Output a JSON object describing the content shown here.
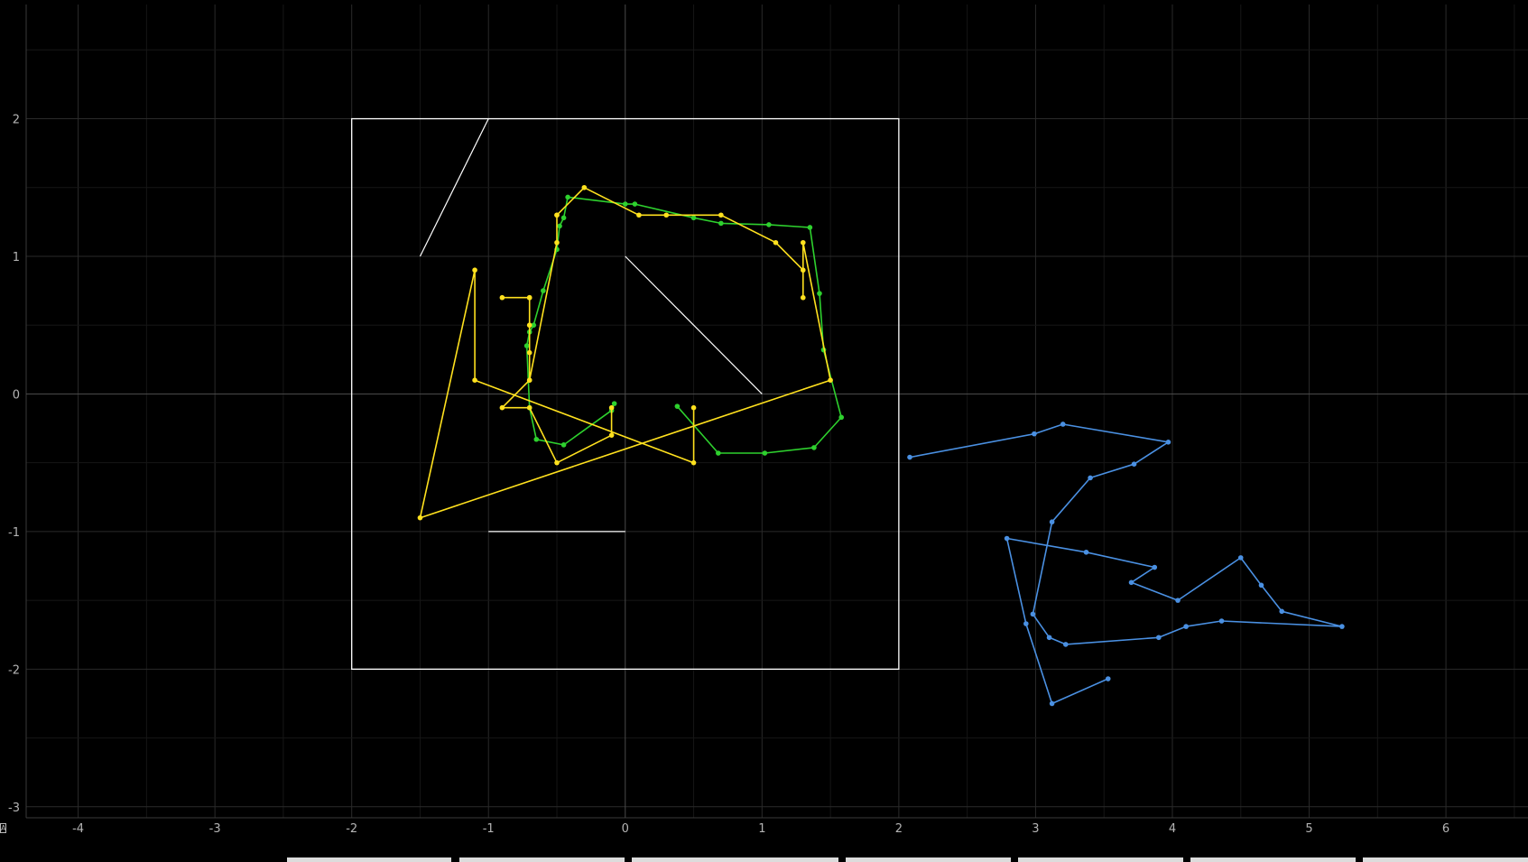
{
  "chart_data": {
    "type": "line",
    "xlim": [
      -4.38,
      6.6
    ],
    "ylim": [
      -3.08,
      2.83
    ],
    "grid": true,
    "x_ticks": [
      -4,
      -3,
      -2,
      -1,
      0,
      1,
      2,
      3,
      4,
      5,
      6
    ],
    "y_ticks": [
      -3,
      -2,
      -1,
      0,
      1,
      2
    ],
    "x_tick_labels": [
      "-4",
      "-3",
      "-2",
      "-1",
      "0",
      "1",
      "2",
      "3",
      "4",
      "5",
      "6"
    ],
    "y_tick_labels": [
      "-3",
      "-2",
      "-1",
      "0",
      "1",
      "2"
    ],
    "series": [
      {
        "id": "green",
        "color": "#2ed12e",
        "x": [
          -0.08,
          -0.1,
          -0.45,
          -0.65,
          -0.7,
          -0.72,
          -0.7,
          -0.67,
          -0.6,
          -0.5,
          -0.48,
          -0.45,
          -0.42,
          0.0,
          0.07,
          0.5,
          0.7,
          1.05,
          1.35,
          1.42,
          1.45,
          1.58,
          1.38,
          1.02,
          0.68,
          0.38
        ],
        "y": [
          -0.07,
          -0.12,
          -0.37,
          -0.33,
          -0.1,
          0.35,
          0.45,
          0.5,
          0.75,
          1.05,
          1.22,
          1.28,
          1.43,
          1.38,
          1.38,
          1.28,
          1.24,
          1.23,
          1.21,
          0.73,
          0.32,
          -0.17,
          -0.39,
          -0.43,
          -0.43,
          -0.09
        ]
      },
      {
        "id": "yellow",
        "color": "#ffe11e",
        "x": [
          -0.1,
          -0.1,
          -0.5,
          -0.7,
          -0.9,
          -0.7,
          -0.7,
          -0.7,
          -0.9,
          -0.7,
          -0.7,
          -0.7,
          -0.5,
          -0.5,
          -0.5,
          -0.3,
          0.1,
          0.3,
          0.7,
          1.1,
          1.3,
          1.3,
          1.3,
          1.5,
          -1.5,
          -1.1,
          -1.1,
          0.5,
          0.5
        ],
        "y": [
          -0.1,
          -0.3,
          -0.5,
          -0.1,
          -0.1,
          0.1,
          0.5,
          0.7,
          0.7,
          0.7,
          0.3,
          0.1,
          1.1,
          1.3,
          1.3,
          1.5,
          1.3,
          1.3,
          1.3,
          1.1,
          0.9,
          0.7,
          1.1,
          0.1,
          -0.9,
          0.9,
          0.1,
          -0.5,
          -0.1
        ]
      },
      {
        "id": "blue",
        "color": "#4a90e2",
        "x": [
          2.08,
          2.99,
          3.2,
          3.97,
          3.72,
          3.4,
          3.12,
          2.98,
          3.1,
          3.22,
          3.9,
          4.1,
          4.36,
          5.24,
          4.8,
          4.65,
          4.5,
          4.04,
          3.7,
          3.87,
          3.37,
          2.79,
          2.93,
          3.12,
          3.53
        ],
        "y": [
          -0.46,
          -0.29,
          -0.22,
          -0.35,
          -0.51,
          -0.61,
          -0.93,
          -1.6,
          -1.77,
          -1.82,
          -1.77,
          -1.69,
          -1.65,
          -1.69,
          -1.58,
          -1.39,
          -1.19,
          -1.5,
          -1.37,
          -1.26,
          -1.15,
          -1.05,
          -1.67,
          -2.25,
          -2.07
        ]
      }
    ],
    "shapes": [
      {
        "type": "rectangle",
        "color": "#ffffff",
        "x": [
          -2,
          2
        ],
        "y": [
          -2,
          2
        ]
      },
      {
        "type": "segment",
        "color": "#ffffff",
        "x": [
          -1.5,
          -1.0
        ],
        "y": [
          1.0,
          2.0
        ]
      },
      {
        "type": "segment",
        "color": "#ffffff",
        "x": [
          0.0,
          1.0
        ],
        "y": [
          1.0,
          0.0
        ]
      },
      {
        "type": "segment",
        "color": "#ffffff",
        "x": [
          -1.0,
          0.0
        ],
        "y": [
          -1.0,
          -1.0
        ]
      }
    ],
    "colors": {
      "background": "#000000",
      "grid": "#262626",
      "axis_zero": "#4a4a4a",
      "tick_text": "#b4b4b4"
    }
  },
  "ui": {
    "corner_icon": "A"
  }
}
